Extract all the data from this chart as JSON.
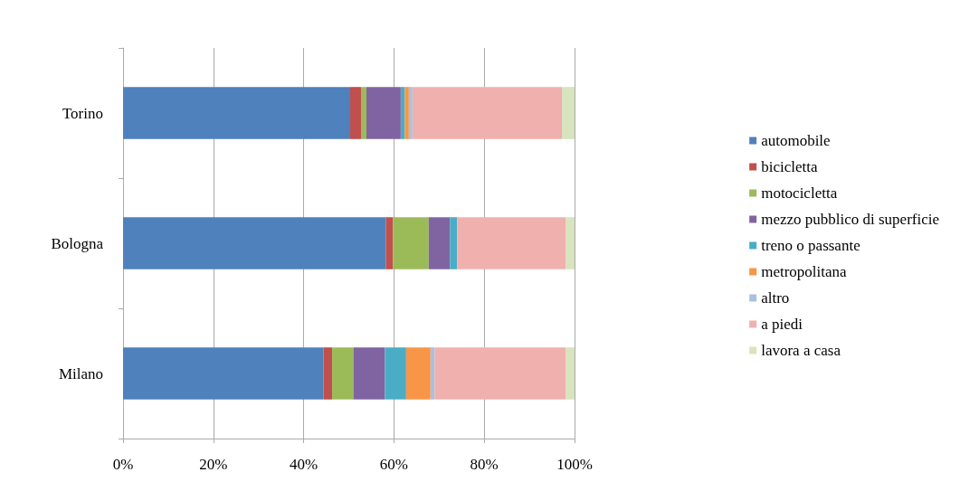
{
  "chart_data": {
    "type": "bar",
    "orientation": "horizontal",
    "stacked": true,
    "categories": [
      "Torino",
      "Bologna",
      "Milano"
    ],
    "series": [
      {
        "name": "automobile",
        "color": "#4f81bd",
        "values": [
          50.3,
          58.2,
          44.4
        ]
      },
      {
        "name": "bicicletta",
        "color": "#c0504d",
        "values": [
          2.4,
          1.6,
          1.9
        ]
      },
      {
        "name": "motocicletta",
        "color": "#9bbb59",
        "values": [
          1.2,
          7.9,
          4.7
        ]
      },
      {
        "name": "mezzo pubblico di superficie",
        "color": "#8064a2",
        "values": [
          7.6,
          4.7,
          7.0
        ]
      },
      {
        "name": "treno o passante",
        "color": "#4bacc6",
        "values": [
          0.9,
          1.6,
          4.7
        ]
      },
      {
        "name": "metropolitana",
        "color": "#f79646",
        "values": [
          0.9,
          0,
          5.4
        ]
      },
      {
        "name": "altro",
        "color": "#a9c1e0",
        "values": [
          0.8,
          0,
          0.9
        ]
      },
      {
        "name": "a piedi",
        "color": "#f0b0ae",
        "values": [
          33.1,
          24.1,
          29.1
        ]
      },
      {
        "name": "lavora a casa",
        "color": "#d7e4bd",
        "values": [
          2.8,
          1.9,
          1.9
        ]
      }
    ],
    "xlim": [
      0,
      100
    ],
    "xticks": [
      {
        "value": 0,
        "label": "0%"
      },
      {
        "value": 20,
        "label": "20%"
      },
      {
        "value": 40,
        "label": "40%"
      },
      {
        "value": 60,
        "label": "60%"
      },
      {
        "value": 80,
        "label": "80%"
      },
      {
        "value": 100,
        "label": "100%"
      }
    ],
    "grid": "x",
    "legend": "right"
  }
}
